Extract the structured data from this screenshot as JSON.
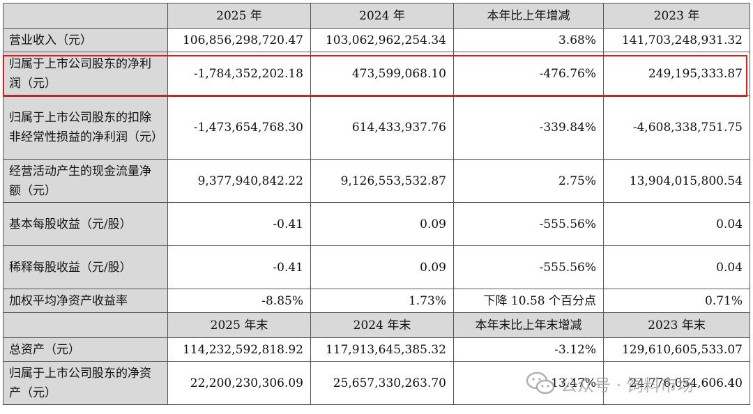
{
  "header1": [
    "",
    "2025 年",
    "2024 年",
    "本年比上年增减",
    "2023 年"
  ],
  "header2": [
    "",
    "2025 年末",
    "2024 年末",
    "本年末比上年末增减",
    "2023 年末"
  ],
  "rows1": [
    {
      "label": "营业收入（元）",
      "v2025": "106,856,298,720.47",
      "v2024": "103,062,962,254.34",
      "change": "3.68%",
      "v2023": "141,703,248,931.32"
    },
    {
      "label": "归属于上市公司股东的净利润（元）",
      "v2025": "-1,784,352,202.18",
      "v2024": "473,599,068.10",
      "change": "-476.76%",
      "v2023": "249,195,333.87"
    },
    {
      "label": "归属于上市公司股东的扣除非经常性损益的净利润（元）",
      "v2025": "-1,473,654,768.30",
      "v2024": "614,433,937.76",
      "change": "-339.84%",
      "v2023": "-4,608,338,751.75"
    },
    {
      "label": "经营活动产生的现金流量净额（元）",
      "v2025": "9,377,940,842.22",
      "v2024": "9,126,553,532.87",
      "change": "2.75%",
      "v2023": "13,904,015,800.54"
    },
    {
      "label": "基本每股收益（元/股）",
      "v2025": "-0.41",
      "v2024": "0.09",
      "change": "-555.56%",
      "v2023": "0.04"
    },
    {
      "label": "稀释每股收益（元/股）",
      "v2025": "-0.41",
      "v2024": "0.09",
      "change": "-555.56%",
      "v2023": "0.04"
    },
    {
      "label": "加权平均净资产收益率",
      "v2025": "-8.85%",
      "v2024": "1.73%",
      "change": "下降 10.58 个百分点",
      "v2023": "0.71%"
    }
  ],
  "rows2": [
    {
      "label": "总资产（元）",
      "v2025": "114,232,592,818.92",
      "v2024": "117,913,645,385.32",
      "change": "-3.12%",
      "v2023": "129,610,605,533.07"
    },
    {
      "label": "归属于上市公司股东的净资产（元）",
      "v2025": "22,200,230,306.09",
      "v2024": "25,657,330,263.70",
      "change": "-13.47%",
      "v2023": "24,776,054,606.40"
    }
  ],
  "watermark": "公众号 · 饲料市场"
}
